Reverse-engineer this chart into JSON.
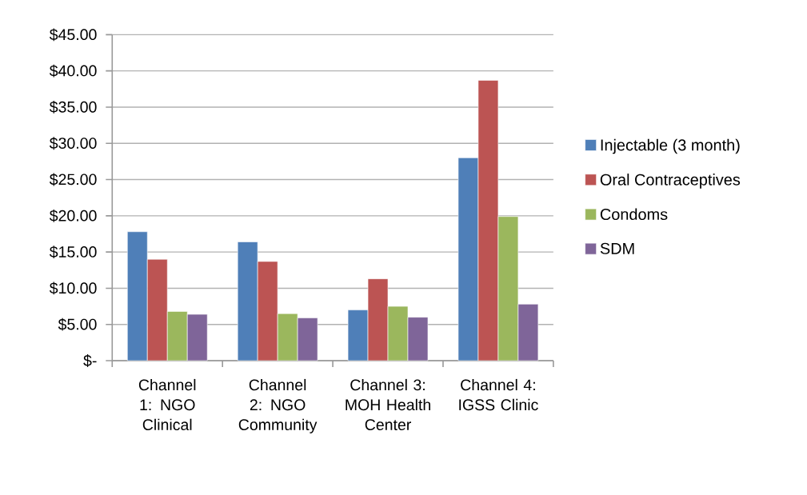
{
  "chart_data": {
    "type": "bar",
    "categories": [
      "Channel 1: NGO Clinical",
      "Channel 2: NGO Community",
      "Channel 3: MOH Health Center",
      "Channel 4: IGSS Clinic"
    ],
    "series": [
      {
        "name": "Injectable (3 month)",
        "color": "#4f7fb8",
        "values": [
          17.8,
          16.4,
          7.0,
          28.0
        ]
      },
      {
        "name": "Oral Contraceptives",
        "color": "#bc5453",
        "values": [
          14.0,
          13.7,
          11.3,
          38.7
        ]
      },
      {
        "name": "Condoms",
        "color": "#9bb75d",
        "values": [
          6.8,
          6.5,
          7.5,
          19.9
        ]
      },
      {
        "name": "SDM",
        "color": "#7f6599",
        "values": [
          6.4,
          5.9,
          6.0,
          7.8
        ]
      }
    ],
    "ylim": [
      0,
      45
    ],
    "yticks": [
      {
        "value": 0,
        "label": "$-"
      },
      {
        "value": 5,
        "label": "$5.00"
      },
      {
        "value": 10,
        "label": "$10.00"
      },
      {
        "value": 15,
        "label": "$15.00"
      },
      {
        "value": 20,
        "label": "$20.00"
      },
      {
        "value": 25,
        "label": "$25.00"
      },
      {
        "value": 30,
        "label": "$30.00"
      },
      {
        "value": 35,
        "label": "$35.00"
      },
      {
        "value": 40,
        "label": "$40.00"
      },
      {
        "value": 45,
        "label": "$45.00"
      }
    ],
    "grid": "y",
    "legend": "right"
  }
}
